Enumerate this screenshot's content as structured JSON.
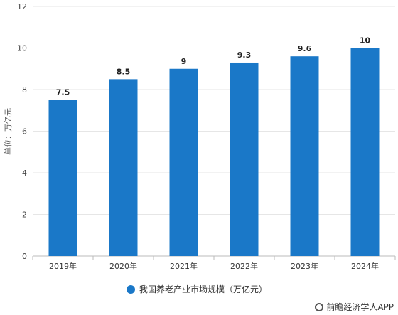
{
  "chart_data": {
    "type": "bar",
    "categories": [
      "2019年",
      "2020年",
      "2021年",
      "2022年",
      "2023年",
      "2024年"
    ],
    "values": [
      7.5,
      8.5,
      9,
      9.3,
      9.6,
      10
    ],
    "value_labels": [
      "7.5",
      "8.5",
      "9",
      "9.3",
      "9.6",
      "10"
    ],
    "ylabel": "单位：万亿元",
    "ylim": [
      0,
      12
    ],
    "yticks": [
      0,
      2,
      4,
      6,
      8,
      10,
      12
    ],
    "grid": true,
    "legend": {
      "label": "我国养老产业市场规模（万亿元）",
      "placement": "bottom"
    },
    "bar_color": "#1a78c8"
  },
  "footer": {
    "source": "前瞻经济学人APP"
  }
}
